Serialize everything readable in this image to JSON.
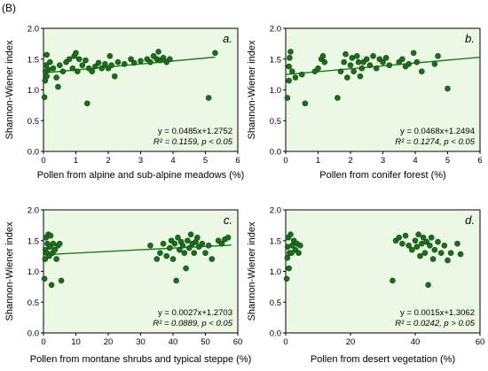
{
  "figure_label": "(B)",
  "colors": {
    "panel_bg": "#eaf8e4",
    "point": "#1f6b1f",
    "point_edge": "#0f4a10",
    "line": "#1f7a1f",
    "axis": "#000000"
  },
  "chart_data": [
    {
      "type": "scatter",
      "panel_label": "a.",
      "xlabel": "Pollen from alpine and sub-alpine meadows (%)",
      "ylabel": "Shannon-Wiener index",
      "xlim": [
        0,
        6
      ],
      "ylim": [
        0.0,
        2.0
      ],
      "xticks": [
        "0",
        "1",
        "2",
        "3",
        "4",
        "5",
        "6"
      ],
      "yticks": [
        "0.0",
        "0.5",
        "1.0",
        "1.5",
        "2.0"
      ],
      "fit": {
        "slope": 0.0485,
        "intercept": 1.2752,
        "x_range": [
          0,
          5.3
        ]
      },
      "equation": "y = 0.0485x+1.2752",
      "r2_text": "R² = 0.1159, p < 0.05",
      "points": [
        [
          0.03,
          0.88
        ],
        [
          0.05,
          1.15
        ],
        [
          0.06,
          1.3
        ],
        [
          0.08,
          1.4
        ],
        [
          0.1,
          1.22
        ],
        [
          0.1,
          1.57
        ],
        [
          0.15,
          1.33
        ],
        [
          0.2,
          1.45
        ],
        [
          0.3,
          1.35
        ],
        [
          0.4,
          1.2
        ],
        [
          0.45,
          1.05
        ],
        [
          0.5,
          1.4
        ],
        [
          0.6,
          1.3
        ],
        [
          0.7,
          1.45
        ],
        [
          0.8,
          1.5
        ],
        [
          0.9,
          1.35
        ],
        [
          0.95,
          1.55
        ],
        [
          1.0,
          1.6
        ],
        [
          1.05,
          1.3
        ],
        [
          1.1,
          1.5
        ],
        [
          1.2,
          1.4
        ],
        [
          1.3,
          1.48
        ],
        [
          1.35,
          0.78
        ],
        [
          1.4,
          1.35
        ],
        [
          1.5,
          1.3
        ],
        [
          1.6,
          1.38
        ],
        [
          1.7,
          1.44
        ],
        [
          1.8,
          1.35
        ],
        [
          1.9,
          1.42
        ],
        [
          2.0,
          1.35
        ],
        [
          2.05,
          1.55
        ],
        [
          2.1,
          1.4
        ],
        [
          2.2,
          1.22
        ],
        [
          2.3,
          1.45
        ],
        [
          2.5,
          1.42
        ],
        [
          2.7,
          1.5
        ],
        [
          2.8,
          1.44
        ],
        [
          3.0,
          1.47
        ],
        [
          3.2,
          1.5
        ],
        [
          3.3,
          1.45
        ],
        [
          3.4,
          1.55
        ],
        [
          3.5,
          1.5
        ],
        [
          3.55,
          1.62
        ],
        [
          3.6,
          1.48
        ],
        [
          3.7,
          1.52
        ],
        [
          3.8,
          1.45
        ],
        [
          3.9,
          1.5
        ],
        [
          5.1,
          0.87
        ],
        [
          5.3,
          1.6
        ]
      ]
    },
    {
      "type": "scatter",
      "panel_label": "b.",
      "xlabel": "Pollen from conifer forest (%)",
      "ylabel": "Shannon-Wiener index",
      "xlim": [
        0,
        6
      ],
      "ylim": [
        0.0,
        2.0
      ],
      "xticks": [
        "0",
        "1",
        "2",
        "3",
        "4",
        "5",
        "6"
      ],
      "yticks": [
        "0.0",
        "0.5",
        "1.0",
        "1.5",
        "2.0"
      ],
      "fit": {
        "slope": 0.0468,
        "intercept": 1.2494,
        "x_range": [
          0,
          6
        ]
      },
      "equation": "y = 0.0468x+1.2494",
      "r2_text": "R² = 0.1274, p < 0.05",
      "points": [
        [
          0.05,
          0.87
        ],
        [
          0.1,
          1.15
        ],
        [
          0.1,
          1.38
        ],
        [
          0.12,
          1.52
        ],
        [
          0.15,
          1.62
        ],
        [
          0.2,
          1.3
        ],
        [
          0.3,
          1.2
        ],
        [
          0.5,
          1.25
        ],
        [
          0.6,
          0.78
        ],
        [
          0.9,
          1.3
        ],
        [
          1.0,
          1.35
        ],
        [
          1.1,
          1.5
        ],
        [
          1.15,
          1.55
        ],
        [
          1.2,
          1.45
        ],
        [
          1.6,
          0.87
        ],
        [
          1.7,
          1.3
        ],
        [
          1.8,
          1.45
        ],
        [
          1.85,
          1.58
        ],
        [
          1.9,
          1.2
        ],
        [
          2.0,
          1.4
        ],
        [
          2.05,
          1.52
        ],
        [
          2.1,
          1.3
        ],
        [
          2.2,
          1.55
        ],
        [
          2.25,
          1.45
        ],
        [
          2.3,
          1.22
        ],
        [
          2.35,
          1.35
        ],
        [
          2.4,
          1.45
        ],
        [
          2.5,
          1.5
        ],
        [
          2.6,
          1.4
        ],
        [
          2.7,
          1.55
        ],
        [
          2.8,
          1.35
        ],
        [
          2.9,
          1.5
        ],
        [
          3.0,
          1.45
        ],
        [
          3.1,
          1.52
        ],
        [
          3.2,
          1.4
        ],
        [
          3.5,
          1.45
        ],
        [
          3.6,
          1.5
        ],
        [
          3.7,
          1.38
        ],
        [
          3.8,
          1.42
        ],
        [
          3.95,
          1.6
        ],
        [
          4.05,
          1.45
        ],
        [
          4.2,
          1.3
        ],
        [
          4.6,
          1.42
        ],
        [
          4.7,
          1.55
        ],
        [
          5.0,
          1.02
        ]
      ]
    },
    {
      "type": "scatter",
      "panel_label": "c.",
      "xlabel": "Pollen from montane shrubs and typical steppe (%)",
      "ylabel": "Shannon-Wiener index",
      "xlim": [
        0,
        60
      ],
      "ylim": [
        0.0,
        2.0
      ],
      "xticks": [
        "0",
        "10",
        "20",
        "30",
        "40",
        "50",
        "60"
      ],
      "yticks": [
        "0.0",
        "0.5",
        "1.0",
        "1.5",
        "2.0"
      ],
      "fit": {
        "slope": 0.0027,
        "intercept": 1.2703,
        "x_range": [
          0,
          58
        ]
      },
      "equation": "y = 0.0027x+1.2703",
      "r2_text": "R² = 0.0889, p < 0.05",
      "points": [
        [
          0.3,
          0.88
        ],
        [
          0.5,
          1.2
        ],
        [
          0.6,
          1.35
        ],
        [
          0.8,
          1.55
        ],
        [
          1.0,
          1.3
        ],
        [
          1.2,
          1.45
        ],
        [
          1.5,
          1.6
        ],
        [
          1.8,
          1.25
        ],
        [
          2.0,
          1.4
        ],
        [
          2.2,
          1.58
        ],
        [
          2.5,
          0.78
        ],
        [
          2.8,
          1.3
        ],
        [
          3.0,
          1.45
        ],
        [
          3.5,
          1.35
        ],
        [
          4.0,
          1.2
        ],
        [
          4.5,
          1.42
        ],
        [
          5.0,
          1.45
        ],
        [
          5.5,
          0.85
        ],
        [
          33.0,
          1.42
        ],
        [
          35.0,
          1.2
        ],
        [
          36.0,
          1.3
        ],
        [
          37.0,
          1.45
        ],
        [
          38.0,
          1.25
        ],
        [
          39.0,
          1.38
        ],
        [
          39.5,
          1.5
        ],
        [
          40.0,
          1.2
        ],
        [
          40.5,
          1.45
        ],
        [
          41.0,
          0.85
        ],
        [
          41.5,
          1.55
        ],
        [
          42.0,
          1.35
        ],
        [
          42.5,
          1.48
        ],
        [
          43.0,
          1.42
        ],
        [
          43.5,
          1.3
        ],
        [
          44.0,
          1.05
        ],
        [
          44.5,
          1.5
        ],
        [
          45.0,
          1.38
        ],
        [
          45.5,
          1.6
        ],
        [
          46.0,
          1.45
        ],
        [
          46.5,
          1.3
        ],
        [
          47.0,
          1.48
        ],
        [
          47.5,
          1.55
        ],
        [
          48.0,
          1.4
        ],
        [
          49.0,
          1.45
        ],
        [
          50.0,
          1.3
        ],
        [
          51.0,
          1.42
        ],
        [
          52.0,
          1.2
        ],
        [
          54.0,
          1.5
        ],
        [
          55.0,
          1.45
        ],
        [
          56.0,
          1.52
        ],
        [
          57.0,
          1.55
        ]
      ]
    },
    {
      "type": "scatter",
      "panel_label": "d.",
      "xlabel": "Pollen from desert vegetation (%)",
      "ylabel": "Shannon-Wiener index",
      "xlim": [
        0,
        60
      ],
      "ylim": [
        0.0,
        2.0
      ],
      "xticks": [
        "0",
        "20",
        "40",
        "60"
      ],
      "yticks": [
        "0.0",
        "0.5",
        "1.0",
        "1.5",
        "2.0"
      ],
      "fit": null,
      "equation": "y = 0.0015x+1.3062",
      "r2_text": "R² = 0.0242, p > 0.05",
      "points": [
        [
          0.3,
          0.88
        ],
        [
          0.5,
          1.22
        ],
        [
          0.6,
          1.4
        ],
        [
          0.8,
          1.55
        ],
        [
          1.0,
          1.05
        ],
        [
          1.2,
          1.3
        ],
        [
          1.5,
          1.6
        ],
        [
          1.8,
          1.3
        ],
        [
          2.0,
          1.42
        ],
        [
          2.5,
          1.5
        ],
        [
          3.0,
          1.35
        ],
        [
          3.5,
          1.45
        ],
        [
          4.0,
          1.3
        ],
        [
          4.5,
          1.42
        ],
        [
          33.0,
          0.85
        ],
        [
          34.0,
          1.5
        ],
        [
          35.0,
          1.55
        ],
        [
          36.0,
          1.45
        ],
        [
          37.0,
          1.58
        ],
        [
          38.0,
          1.42
        ],
        [
          39.0,
          1.35
        ],
        [
          40.0,
          1.5
        ],
        [
          40.5,
          1.4
        ],
        [
          41.0,
          1.6
        ],
        [
          41.5,
          1.25
        ],
        [
          42.0,
          1.45
        ],
        [
          42.5,
          1.55
        ],
        [
          43.0,
          1.3
        ],
        [
          43.5,
          1.48
        ],
        [
          44.0,
          0.78
        ],
        [
          44.5,
          1.42
        ],
        [
          45.0,
          1.55
        ],
        [
          45.5,
          1.2
        ],
        [
          46.0,
          1.35
        ],
        [
          47.0,
          1.48
        ],
        [
          48.0,
          1.3
        ],
        [
          49.0,
          1.42
        ],
        [
          50.0,
          1.18
        ],
        [
          51.0,
          1.3
        ],
        [
          53.0,
          1.45
        ],
        [
          54.0,
          1.28
        ]
      ]
    }
  ]
}
